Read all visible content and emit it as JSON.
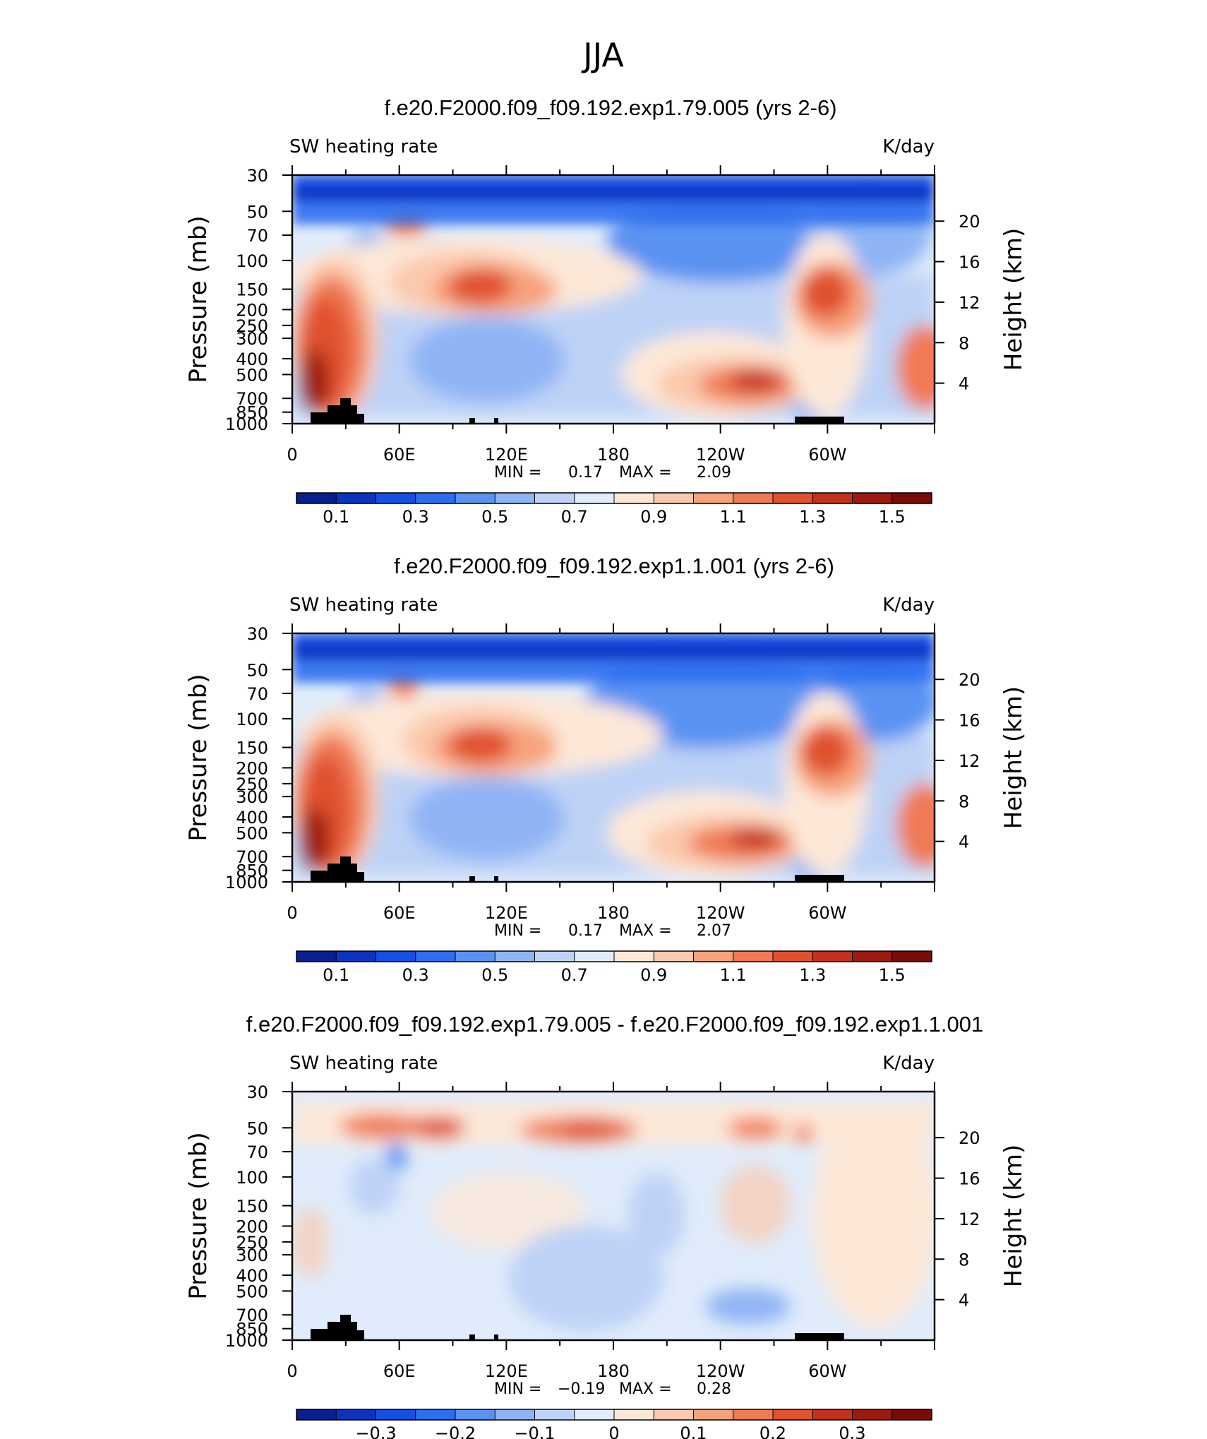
{
  "figure": {
    "main_title": "JJA",
    "left_label": "SW heating rate",
    "right_label": "K/day",
    "yaxis_left_label": "Pressure (mb)",
    "yaxis_right_label": "Height (km)",
    "x_ticks": [
      "0",
      "60E",
      "120E",
      "180",
      "120W",
      "60W"
    ],
    "pressure_ticks": [
      "30",
      "50",
      "70",
      "100",
      "150",
      "200",
      "250",
      "300",
      "400",
      "500",
      "700",
      "850",
      "1000"
    ],
    "height_ticks": [
      "20",
      "16",
      "12",
      "8",
      "4"
    ]
  },
  "chart_data": [
    {
      "type": "heatmap",
      "title": "f.e20.F2000.f09_f09.192.exp1.79.005 (yrs 2-6)",
      "x_range": [
        0,
        360
      ],
      "y_range_mb": [
        1000,
        30
      ],
      "min_label": "MIN =",
      "min_value": "0.17",
      "max_label": "MAX =",
      "max_value": "2.09",
      "colorbar_labels": [
        "0.1",
        "0.3",
        "0.5",
        "0.7",
        "0.9",
        "1.1",
        "1.3",
        "1.5"
      ],
      "colorbar_colors": [
        "#0a1f8f",
        "#0c33c0",
        "#1450e3",
        "#2d6ef0",
        "#5a92f2",
        "#8fb4f5",
        "#bdd2f6",
        "#e0ecfb",
        "#fde8d8",
        "#fbc9ad",
        "#f7a27c",
        "#f07a54",
        "#e0512d",
        "#c3301b",
        "#9c1a10",
        "#7a0b08"
      ]
    },
    {
      "type": "heatmap",
      "title": "f.e20.F2000.f09_f09.192.exp1.1.001 (yrs 2-6)",
      "x_range": [
        0,
        360
      ],
      "y_range_mb": [
        1000,
        30
      ],
      "min_label": "MIN =",
      "min_value": "0.17",
      "max_label": "MAX =",
      "max_value": "2.07",
      "colorbar_labels": [
        "0.1",
        "0.3",
        "0.5",
        "0.7",
        "0.9",
        "1.1",
        "1.3",
        "1.5"
      ],
      "colorbar_colors": [
        "#0a1f8f",
        "#0c33c0",
        "#1450e3",
        "#2d6ef0",
        "#5a92f2",
        "#8fb4f5",
        "#bdd2f6",
        "#e0ecfb",
        "#fde8d8",
        "#fbc9ad",
        "#f7a27c",
        "#f07a54",
        "#e0512d",
        "#c3301b",
        "#9c1a10",
        "#7a0b08"
      ]
    },
    {
      "type": "heatmap",
      "title": "f.e20.F2000.f09_f09.192.exp1.79.005 - f.e20.F2000.f09_f09.192.exp1.1.001",
      "x_range": [
        0,
        360
      ],
      "y_range_mb": [
        1000,
        30
      ],
      "min_label": "MIN =",
      "min_value": "−0.19",
      "max_label": "MAX =",
      "max_value": "0.28",
      "colorbar_labels": [
        "−0.3",
        "−0.2",
        "−0.1",
        "0",
        "0.1",
        "0.2",
        "0.3"
      ],
      "colorbar_colors": [
        "#0a1f8f",
        "#0c33c0",
        "#1450e3",
        "#2d6ef0",
        "#5a92f2",
        "#8fb4f5",
        "#bdd2f6",
        "#e0ecfb",
        "#fde8d8",
        "#fbc9ad",
        "#f7a27c",
        "#f07a54",
        "#e0512d",
        "#c3301b",
        "#9c1a10",
        "#7a0b08"
      ]
    }
  ]
}
